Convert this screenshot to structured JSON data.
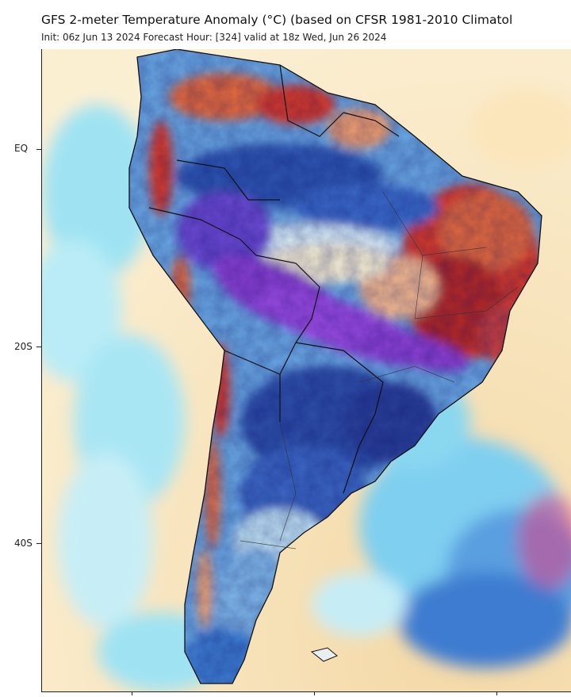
{
  "header": {
    "title": "GFS 2-meter Temperature Anomaly (°C) (based on CFSR 1981-2010 Climatol",
    "subtitle": "Init: 06z Jun 13 2024   Forecast Hour: [324]   valid at 18z Wed, Jun 26 2024"
  },
  "axis": {
    "lat_labels": [
      "EQ",
      "20S",
      "40S"
    ]
  },
  "colors": {
    "ocean_warm": "#f6dfb0",
    "ocean_mild": "#fbecc8",
    "cool_light": "#aee6f5",
    "cool_cyan": "#5fd0ec",
    "cool_mid": "#4f8fd8",
    "cool_dark": "#2f4fa8",
    "cold_purple": "#8a3fd0",
    "warm_orange": "#f08a4b",
    "warm_red": "#d63a2a",
    "warm_dark": "#a82222",
    "land_neutral": "#e8f4f8"
  }
}
